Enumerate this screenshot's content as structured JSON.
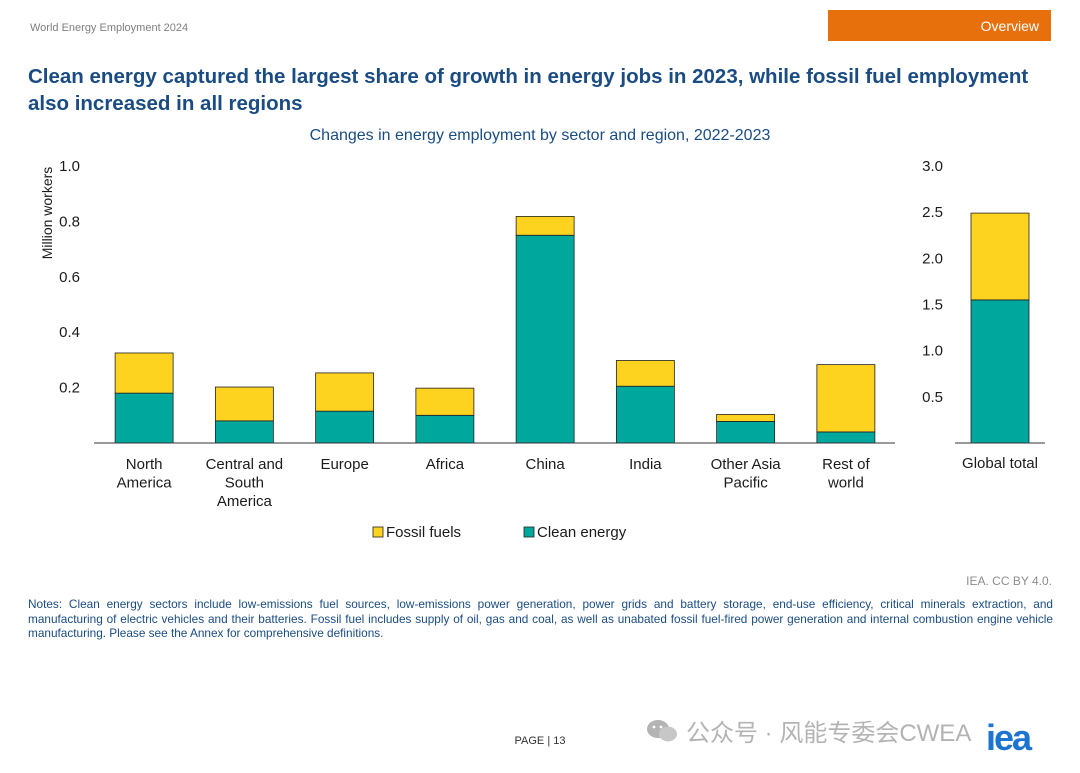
{
  "header": {
    "report_name": "World Energy Employment 2024",
    "section_tab": "Overview"
  },
  "headline": "Clean energy captured the largest share of growth in energy jobs in 2023, while fossil fuel employment also increased in all regions",
  "colors": {
    "clean_energy": "#00a79d",
    "fossil_fuels": "#fdd31f",
    "bar_outline": "#222222",
    "headline": "#1a4c83",
    "tab": "#e8700c",
    "logo": "#1c74d0"
  },
  "chart_data": [
    {
      "type": "bar",
      "stacked": true,
      "title": "Changes in energy employment by sector and region, 2022-2023",
      "ylabel": "Million workers",
      "xlabel": "",
      "ylim": [
        0,
        1.0
      ],
      "yticks": [
        "0.2",
        "0.4",
        "0.6",
        "0.8",
        "1.0"
      ],
      "grid": false,
      "categories": [
        "North America",
        "Central and South America",
        "Europe",
        "Africa",
        "China",
        "India",
        "Other Asia Pacific",
        "Rest of world"
      ],
      "category_lines": [
        [
          "North",
          "America"
        ],
        [
          "Central and",
          "South",
          "America"
        ],
        [
          "Europe"
        ],
        [
          "Africa"
        ],
        [
          "China"
        ],
        [
          "India"
        ],
        [
          "Other Asia",
          "Pacific"
        ],
        [
          "Rest of",
          "world"
        ]
      ],
      "series": [
        {
          "name": "Clean energy",
          "values": [
            0.18,
            0.08,
            0.115,
            0.1,
            0.75,
            0.205,
            0.078,
            0.04
          ]
        },
        {
          "name": "Fossil fuels",
          "values": [
            0.145,
            0.122,
            0.138,
            0.098,
            0.068,
            0.093,
            0.025,
            0.243
          ]
        }
      ]
    },
    {
      "type": "bar",
      "stacked": true,
      "title": "",
      "ylabel": "",
      "ylim": [
        0,
        3.0
      ],
      "yticks": [
        "0.5",
        "1.0",
        "1.5",
        "2.0",
        "2.5",
        "3.0"
      ],
      "grid": false,
      "categories": [
        "Global total"
      ],
      "series": [
        {
          "name": "Clean energy",
          "values": [
            1.55
          ]
        },
        {
          "name": "Fossil fuels",
          "values": [
            0.94
          ]
        }
      ]
    }
  ],
  "legend": {
    "placement": "bottom-center",
    "items": [
      "Fossil fuels",
      "Clean energy"
    ]
  },
  "credit": "IEA. CC BY 4.0.",
  "notes": "Notes: Clean energy sectors include low-emissions fuel sources, low-emissions power generation, power grids and battery storage, end-use efficiency, critical minerals extraction, and manufacturing of electric vehicles and their batteries. Fossil fuel includes supply of oil, gas and coal, as well as unabated fossil fuel-fired power generation and internal combustion engine vehicle manufacturing. Please see the Annex for comprehensive definitions.",
  "footer": {
    "page_label": "PAGE | 13",
    "watermark": "公众号 · 风能专委会CWEA",
    "logo": "iea"
  }
}
